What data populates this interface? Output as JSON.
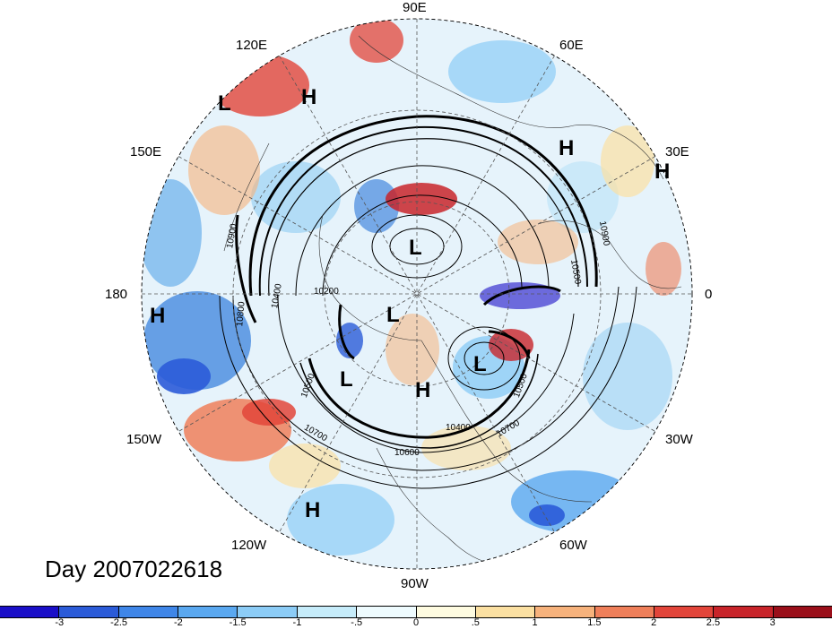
{
  "title": "Day 2007022618",
  "longitude_labels": [
    "90E",
    "60E",
    "30E",
    "0",
    "30W",
    "60W",
    "90W",
    "120W",
    "150W",
    "180",
    "150E",
    "120E"
  ],
  "pressure_centers": [
    "L",
    "H",
    "H",
    "H",
    "L",
    "L",
    "L",
    "H",
    "H",
    "L",
    "L",
    "H"
  ],
  "contour_labels": [
    "10900",
    "10900",
    "10500",
    "10400",
    "10200",
    "10800",
    "10900",
    "10500",
    "10700",
    "10600",
    "10400",
    "10700",
    "10500"
  ],
  "colorbar": {
    "tick_labels": [
      "-3",
      "-2.5",
      "-2",
      "-1.5",
      "-1",
      "-.5",
      "0",
      ".5",
      "1",
      "1.5",
      "2",
      "2.5",
      "3"
    ],
    "colors": [
      "#1a0fc8",
      "#2b5bd8",
      "#3f86e8",
      "#5aa8f0",
      "#8cccf6",
      "#c6ecfa",
      "#eefbfe",
      "#fefbe0",
      "#fbe0a2",
      "#f6b27c",
      "#ef7f5a",
      "#e2453a",
      "#c8242a",
      "#9a0f1a"
    ]
  }
}
